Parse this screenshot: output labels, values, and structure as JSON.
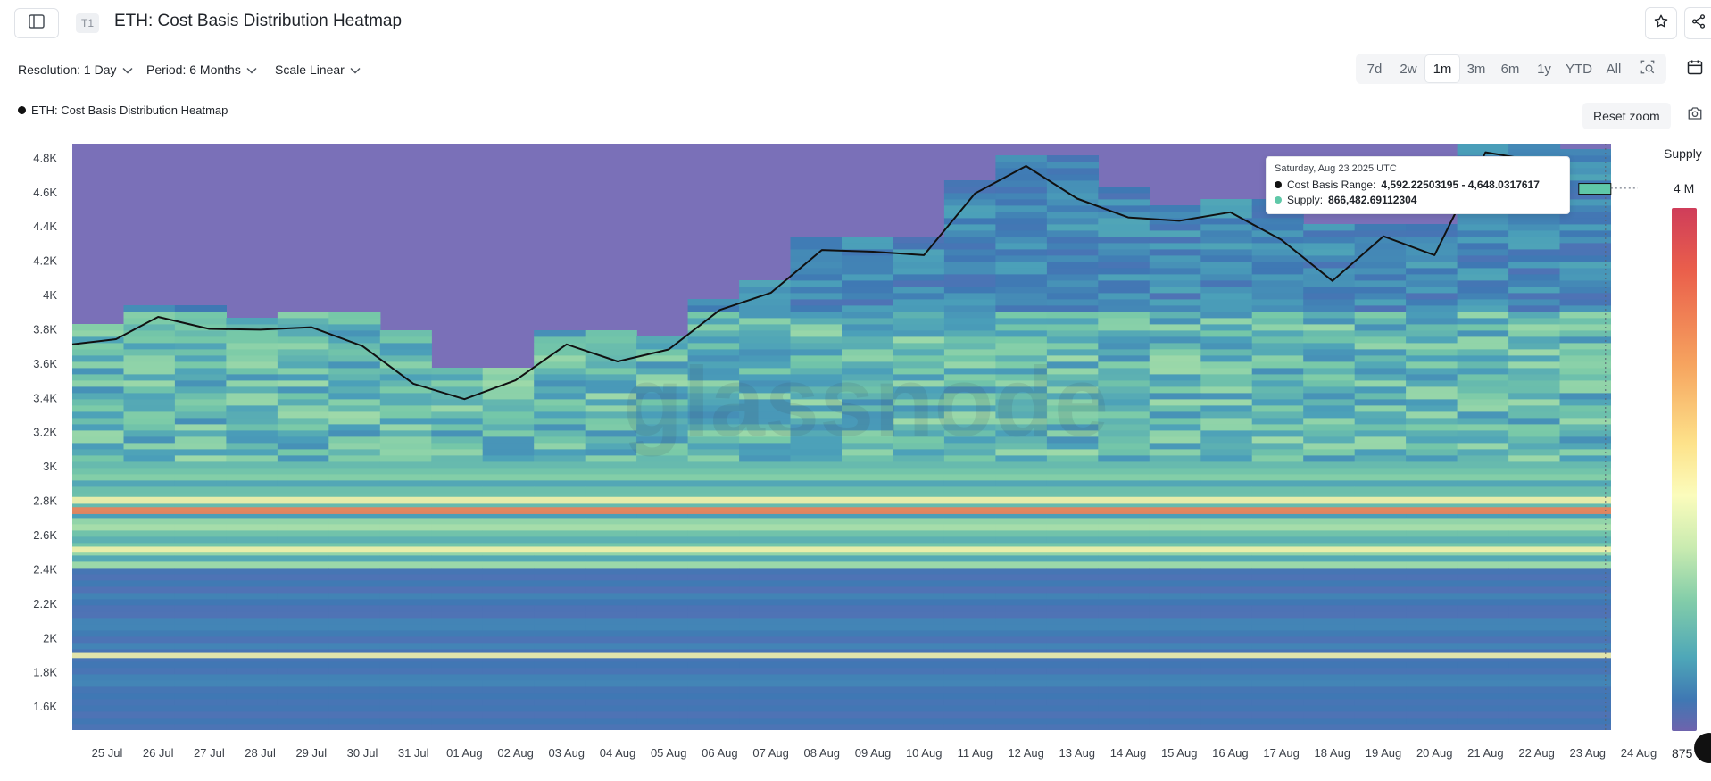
{
  "header": {
    "tier_badge": "T1",
    "title": "ETH: Cost Basis Distribution Heatmap"
  },
  "controls": {
    "resolution": "Resolution: 1 Day",
    "period": "Period: 6 Months",
    "scale": "Scale Linear"
  },
  "range_buttons": [
    "7d",
    "2w",
    "1m",
    "3m",
    "6m",
    "1y",
    "YTD",
    "All"
  ],
  "active_range": "1m",
  "legend": {
    "label": "ETH: Cost Basis Distribution Heatmap"
  },
  "reset_zoom": "Reset zoom",
  "watermark": "glassnode",
  "tooltip": {
    "date": "Saturday, Aug 23 2025 UTC",
    "range_label": "Cost Basis Range:",
    "range_value": "4,592.22503195 - 4,648.0317617",
    "supply_label": "Supply:",
    "supply_value": "866,482.69112304",
    "colors": {
      "range_dot": "#111111",
      "supply_dot": "#5fc8a8"
    }
  },
  "colorbar": {
    "title": "Supply",
    "max_label": "4 M",
    "min_label": "875"
  },
  "icons": {
    "sidebar_toggle": "sidebar-toggle-icon",
    "star": "star-icon",
    "share": "share-icon",
    "calendar": "calendar-icon",
    "zoom_select": "zoom-select-icon",
    "camera": "camera-icon"
  },
  "colors": {
    "price_line": "#111111",
    "heatmap_low": "#7a70b8",
    "heatmap_high": "#d53e4f",
    "accent_text": "#1f2329"
  },
  "chart_data": {
    "type": "heatmap",
    "title": "ETH: Cost Basis Distribution Heatmap",
    "x": [
      "25 Jul",
      "26 Jul",
      "27 Jul",
      "28 Jul",
      "29 Jul",
      "30 Jul",
      "31 Jul",
      "01 Aug",
      "02 Aug",
      "03 Aug",
      "04 Aug",
      "05 Aug",
      "06 Aug",
      "07 Aug",
      "08 Aug",
      "09 Aug",
      "10 Aug",
      "11 Aug",
      "12 Aug",
      "13 Aug",
      "14 Aug",
      "15 Aug",
      "16 Aug",
      "17 Aug",
      "18 Aug",
      "19 Aug",
      "20 Aug",
      "21 Aug",
      "22 Aug",
      "23 Aug",
      "24 Aug"
    ],
    "y_ticks": [
      1600,
      1800,
      2000,
      2200,
      2400,
      2600,
      2800,
      3000,
      3200,
      3400,
      3600,
      3800,
      4000,
      4200,
      4400,
      4600,
      4800
    ],
    "y_tick_labels": [
      "1.6K",
      "1.8K",
      "2K",
      "2.2K",
      "2.4K",
      "2.6K",
      "2.8K",
      "3K",
      "3.2K",
      "3.4K",
      "3.6K",
      "3.8K",
      "4K",
      "4.2K",
      "4.4K",
      "4.6K",
      "4.8K"
    ],
    "ylim": [
      1460,
      4880
    ],
    "series": [
      {
        "name": "ETH: Cost Basis Distribution Heatmap",
        "type": "line",
        "x": [
          "24 Jul",
          "26 Jul",
          "27 Jul",
          "28 Jul",
          "29 Jul",
          "30 Jul",
          "31 Jul",
          "01 Aug",
          "02 Aug",
          "03 Aug",
          "04 Aug",
          "05 Aug",
          "06 Aug",
          "07 Aug",
          "08 Aug",
          "09 Aug",
          "10 Aug",
          "11 Aug",
          "12 Aug",
          "13 Aug",
          "14 Aug",
          "15 Aug",
          "16 Aug",
          "17 Aug",
          "18 Aug",
          "19 Aug",
          "20 Aug",
          "21 Aug",
          "22 Aug",
          "23 Aug"
        ],
        "values": [
          3710,
          3740,
          3870,
          3800,
          3795,
          3810,
          3700,
          3480,
          3390,
          3500,
          3710,
          3610,
          3680,
          3910,
          4010,
          4260,
          4250,
          4230,
          4590,
          4750,
          4560,
          4450,
          4430,
          4480,
          4320,
          4080,
          4340,
          4230,
          4830,
          4780
        ]
      }
    ],
    "supply_bands": [
      {
        "range": [
          1880,
          1910
        ],
        "level": "high"
      },
      {
        "range": [
          2500,
          2530
        ],
        "level": "high"
      },
      {
        "range": [
          2720,
          2760
        ],
        "level": "very high"
      },
      {
        "range": [
          2780,
          2820
        ],
        "level": "high"
      }
    ],
    "colorbar": {
      "label": "Supply",
      "min": 875,
      "max": 4000000,
      "max_label": "4 M"
    },
    "grid": false,
    "legend": "top-left",
    "highlight": {
      "date": "23 Aug",
      "range": [
        4592.22503195,
        4648.0317617
      ],
      "supply": 866482.69112304
    }
  }
}
